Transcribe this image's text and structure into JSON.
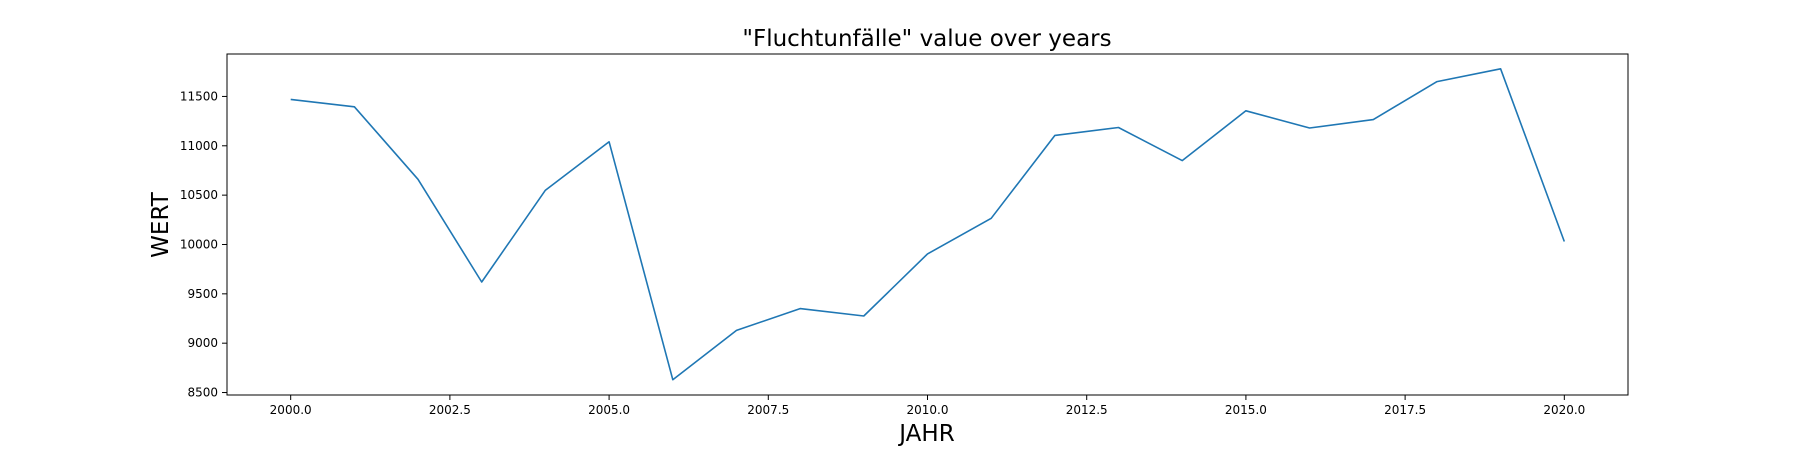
{
  "chart_data": {
    "type": "line",
    "title": "\"Fluchtunfälle\" value over years",
    "xlabel": "JAHR",
    "ylabel": "WERT",
    "xlim": [
      1999.0,
      2021.0
    ],
    "ylim": [
      8475,
      11930
    ],
    "x_ticks": [
      2000.0,
      2002.5,
      2005.0,
      2007.5,
      2010.0,
      2012.5,
      2015.0,
      2017.5,
      2020.0
    ],
    "x_tick_labels": [
      "2000.0",
      "2002.5",
      "2005.0",
      "2007.5",
      "2010.0",
      "2012.5",
      "2015.0",
      "2017.5",
      "2020.0"
    ],
    "y_ticks": [
      8500,
      9000,
      9500,
      10000,
      10500,
      11000,
      11500
    ],
    "y_tick_labels": [
      "8500",
      "9000",
      "9500",
      "10000",
      "10500",
      "11000",
      "11500"
    ],
    "grid": false,
    "color": "#1f77b4",
    "x": [
      2000,
      2001,
      2002,
      2003,
      2004,
      2005,
      2006,
      2007,
      2008,
      2009,
      2010,
      2011,
      2012,
      2013,
      2014,
      2015,
      2016,
      2017,
      2018,
      2019,
      2020
    ],
    "series": [
      {
        "values": [
          11470,
          11395,
          10660,
          9620,
          10550,
          11040,
          8630,
          9130,
          9350,
          9275,
          9905,
          10265,
          11105,
          11185,
          10850,
          11355,
          11180,
          11265,
          11650,
          11780,
          10030
        ]
      }
    ]
  }
}
